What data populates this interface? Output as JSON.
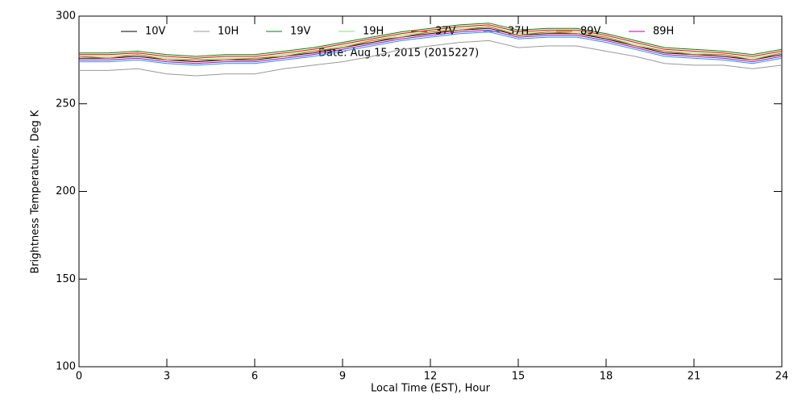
{
  "chart_data": {
    "type": "line",
    "annotation": "Date: Aug 15, 2015 (2015227)",
    "x_label": "Local Time (EST), Hour",
    "y_label": "Brightness Temperature, Deg K",
    "x": [
      0,
      1,
      2,
      3,
      4,
      5,
      6,
      7,
      8,
      9,
      10,
      11,
      12,
      13,
      14,
      15,
      16,
      17,
      18,
      19,
      20,
      21,
      22,
      23,
      24
    ],
    "xlim": [
      0,
      24
    ],
    "xticks": [
      0,
      3,
      6,
      9,
      12,
      15,
      18,
      21,
      24
    ],
    "ylim": [
      100,
      300
    ],
    "yticks": [
      100,
      150,
      200,
      250,
      300
    ],
    "series": [
      {
        "name": "10V",
        "color": "#000000",
        "values": [
          276,
          276,
          277,
          275,
          274,
          275,
          275,
          277,
          279,
          282,
          285,
          288,
          290,
          292,
          293,
          289,
          290,
          290,
          287,
          283,
          279,
          278,
          277,
          275,
          278
        ]
      },
      {
        "name": "10H",
        "color": "#999999",
        "values": [
          269,
          269,
          270,
          267,
          266,
          267,
          267,
          270,
          272,
          274,
          277,
          281,
          283,
          285,
          286,
          282,
          283,
          283,
          280,
          277,
          273,
          272,
          272,
          270,
          272
        ]
      },
      {
        "name": "19V",
        "color": "#008000",
        "values": [
          279,
          279,
          280,
          278,
          277,
          278,
          278,
          280,
          282,
          285,
          288,
          291,
          293,
          295,
          296,
          292,
          293,
          293,
          290,
          286,
          282,
          281,
          280,
          278,
          281
        ]
      },
      {
        "name": "19H",
        "color": "#80e080",
        "values": [
          277,
          277,
          278,
          276,
          275,
          276,
          276,
          278,
          280,
          283,
          286,
          289,
          291,
          293,
          294,
          290,
          291,
          291,
          288,
          284,
          280,
          279,
          278,
          276,
          279
        ]
      },
      {
        "name": "37V",
        "color": "#e00000",
        "values": [
          278,
          278,
          279,
          277,
          276,
          277,
          277,
          279,
          281,
          284,
          287,
          290,
          292,
          294,
          295,
          291,
          292,
          292,
          289,
          285,
          281,
          280,
          279,
          277,
          280
        ]
      },
      {
        "name": "37H",
        "color": "#1e90ff",
        "values": [
          274,
          274,
          275,
          273,
          272,
          273,
          273,
          275,
          277,
          280,
          283,
          286,
          288,
          290,
          291,
          287,
          288,
          288,
          285,
          281,
          277,
          276,
          275,
          273,
          276
        ]
      },
      {
        "name": "89V",
        "color": "#c06000",
        "values": [
          277,
          276,
          278,
          275,
          275,
          275,
          276,
          277,
          280,
          282,
          286,
          288,
          291,
          292,
          294,
          289,
          291,
          290,
          288,
          283,
          280,
          278,
          278,
          275,
          279
        ]
      },
      {
        "name": "89H",
        "color": "#b000b0",
        "values": [
          275,
          275,
          276,
          274,
          273,
          274,
          274,
          276,
          278,
          281,
          284,
          287,
          289,
          291,
          292,
          288,
          289,
          289,
          286,
          282,
          278,
          277,
          276,
          274,
          277
        ]
      }
    ]
  }
}
